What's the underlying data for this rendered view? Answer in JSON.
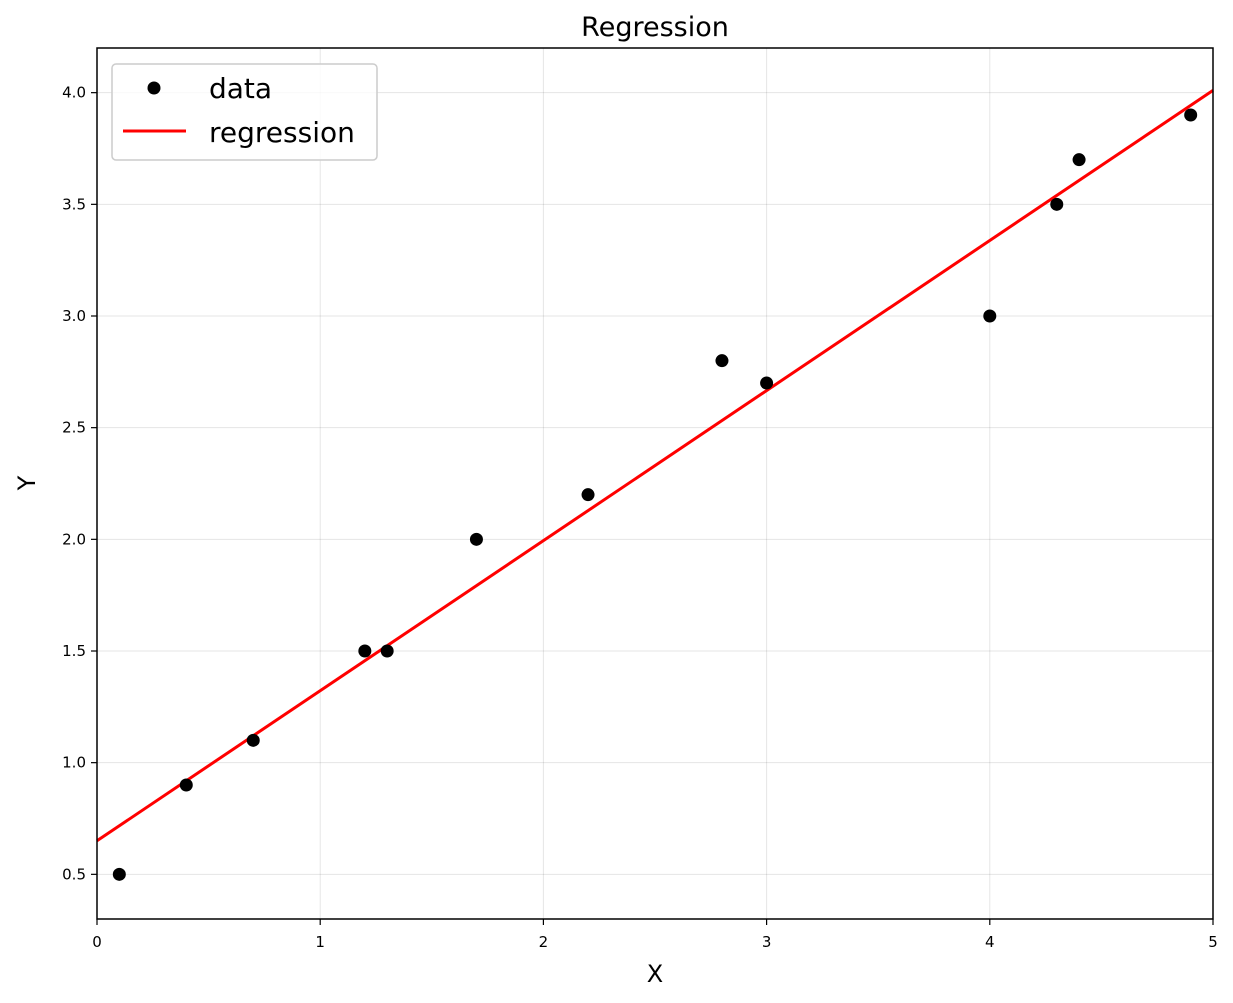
{
  "chart_data": {
    "type": "scatter",
    "title": "Regression",
    "xlabel": "X",
    "ylabel": "Y",
    "xlim": [
      0,
      5
    ],
    "ylim": [
      0.3,
      4.2
    ],
    "xticks": [
      0,
      1,
      2,
      3,
      4,
      5
    ],
    "xtick_labels": [
      "0",
      "1",
      "2",
      "3",
      "4",
      "5"
    ],
    "yticks": [
      0.5,
      1.0,
      1.5,
      2.0,
      2.5,
      3.0,
      3.5,
      4.0
    ],
    "ytick_labels": [
      "0.5",
      "1.0",
      "1.5",
      "2.0",
      "2.5",
      "3.0",
      "3.5",
      "4.0"
    ],
    "grid": true,
    "legend_position": "top-left",
    "series": [
      {
        "name": "data",
        "kind": "scatter",
        "color": "#000000",
        "points": [
          {
            "x": 0.1,
            "y": 0.5
          },
          {
            "x": 0.4,
            "y": 0.9
          },
          {
            "x": 0.7,
            "y": 1.1
          },
          {
            "x": 1.2,
            "y": 1.5
          },
          {
            "x": 1.3,
            "y": 1.5
          },
          {
            "x": 1.7,
            "y": 2.0
          },
          {
            "x": 2.2,
            "y": 2.2
          },
          {
            "x": 2.8,
            "y": 2.8
          },
          {
            "x": 3.0,
            "y": 2.7
          },
          {
            "x": 4.0,
            "y": 3.0
          },
          {
            "x": 4.3,
            "y": 3.5
          },
          {
            "x": 4.4,
            "y": 3.7
          },
          {
            "x": 4.9,
            "y": 3.9
          }
        ]
      },
      {
        "name": "regression",
        "kind": "line",
        "color": "#ff0000",
        "points": [
          {
            "x": 0,
            "y": 0.65
          },
          {
            "x": 5,
            "y": 4.01
          }
        ]
      }
    ]
  }
}
